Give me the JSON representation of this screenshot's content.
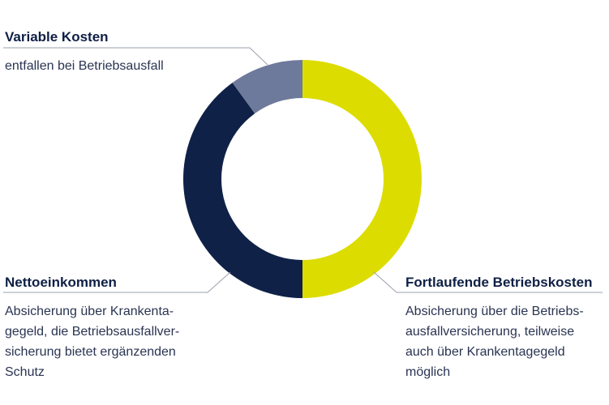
{
  "chart_data": {
    "type": "pie",
    "donut": true,
    "title": "",
    "slices": [
      {
        "label": "Fortlaufende Betriebskosten",
        "value": 50,
        "color": "#dddc00"
      },
      {
        "label": "Nettoeinkommen",
        "value": 40,
        "color": "#0f2147"
      },
      {
        "label": "Variable Kosten",
        "value": 10,
        "color": "#6e7a9b"
      }
    ],
    "annotations": [
      {
        "title": "Variable Kosten",
        "lines": [
          "entfallen bei Betriebsausfall"
        ]
      },
      {
        "title": "Nettoeinkommen",
        "lines": [
          "Absicherung über Krankenta-",
          "gegeld, die Betriebsausfallver-",
          "sicherung bietet ergänzenden",
          "Schutz"
        ]
      },
      {
        "title": "Fortlaufende Betriebskosten",
        "lines": [
          "Absicherung über die Betriebs-",
          "ausfallversicherung, teilweise",
          "auch über Krankentagegeld",
          "möglich"
        ]
      }
    ],
    "leader_line_color": "#9aa0ad"
  }
}
